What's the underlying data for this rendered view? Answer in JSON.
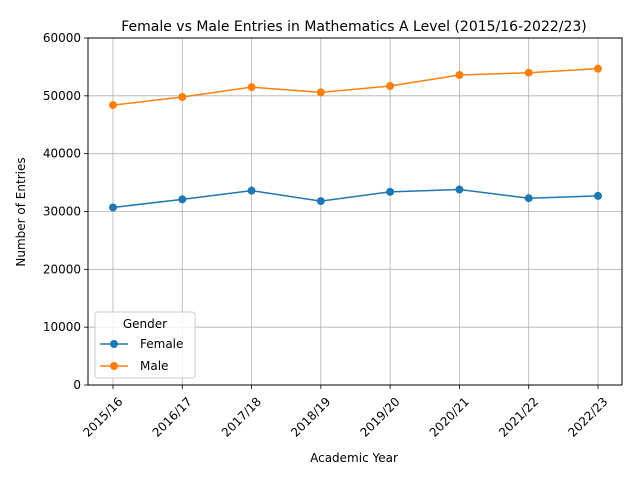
{
  "chart_data": {
    "type": "line",
    "title": "Female vs Male Entries in Mathematics A Level (2015/16-2022/23)",
    "xlabel": "Academic Year",
    "ylabel": "Number of Entries",
    "categories": [
      "2015/16",
      "2016/17",
      "2017/18",
      "2018/19",
      "2019/20",
      "2020/21",
      "2021/22",
      "2022/23"
    ],
    "ylim": [
      0,
      60000
    ],
    "yticks": [
      0,
      10000,
      20000,
      30000,
      40000,
      50000,
      60000
    ],
    "grid": true,
    "legend": {
      "title": "Gender",
      "placement": "lower-left"
    },
    "series": [
      {
        "name": "Female",
        "color": "#1f77b4",
        "values": [
          30700,
          32100,
          33600,
          31800,
          33400,
          33800,
          32300,
          32700
        ]
      },
      {
        "name": "Male",
        "color": "#ff7f0e",
        "values": [
          48400,
          49800,
          51500,
          50600,
          51700,
          53600,
          54000,
          54700
        ]
      }
    ]
  }
}
